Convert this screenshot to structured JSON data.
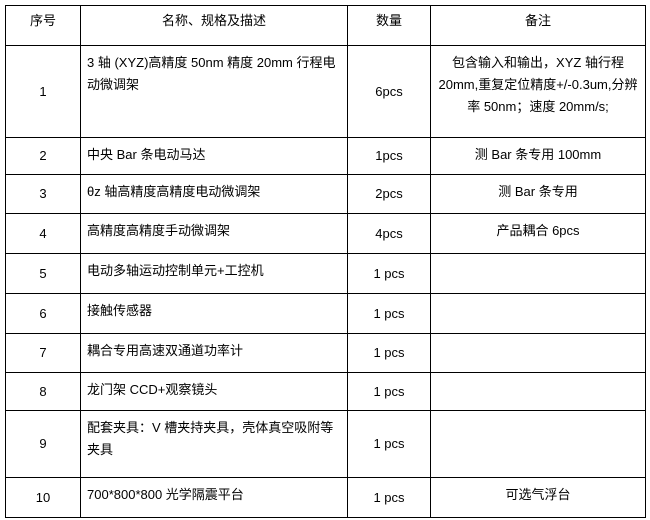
{
  "header": {
    "index": "序号",
    "name": "名称、规格及描述",
    "qty": "数量",
    "remark": "备注"
  },
  "rows": [
    {
      "index": "1",
      "name": "3 轴 (XYZ)高精度 50nm 精度 20mm 行程电动微调架",
      "qty": "6pcs",
      "remark": "包含输入和输出，XYZ 轴行程 20mm,重复定位精度+/-0.3um,分辨率 50nm；速度 20mm/s;"
    },
    {
      "index": "2",
      "name": "中央 Bar 条电动马达",
      "qty": "1pcs",
      "remark": "测 Bar 条专用 100mm"
    },
    {
      "index": "3",
      "name": "θz 轴高精度高精度电动微调架",
      "qty": "2pcs",
      "remark": "测 Bar 条专用"
    },
    {
      "index": "4",
      "name": "高精度高精度手动微调架",
      "qty": "4pcs",
      "remark": "产品耦合 6pcs"
    },
    {
      "index": "5",
      "name": "电动多轴运动控制单元+工控机",
      "qty": "1 pcs",
      "remark": ""
    },
    {
      "index": "6",
      "name": "接触传感器",
      "qty": "1 pcs",
      "remark": ""
    },
    {
      "index": "7",
      "name": "耦合专用高速双通道功率计",
      "qty": "1 pcs",
      "remark": ""
    },
    {
      "index": "8",
      "name": "龙门架 CCD+观察镜头",
      "qty": "1 pcs",
      "remark": ""
    },
    {
      "index": "9",
      "name": "配套夹具：V 槽夹持夹具，壳体真空吸附等夹具",
      "qty": "1 pcs",
      "remark": ""
    },
    {
      "index": "10",
      "name": "700*800*800 光学隔震平台",
      "qty": "1 pcs",
      "remark": "可选气浮台"
    }
  ]
}
